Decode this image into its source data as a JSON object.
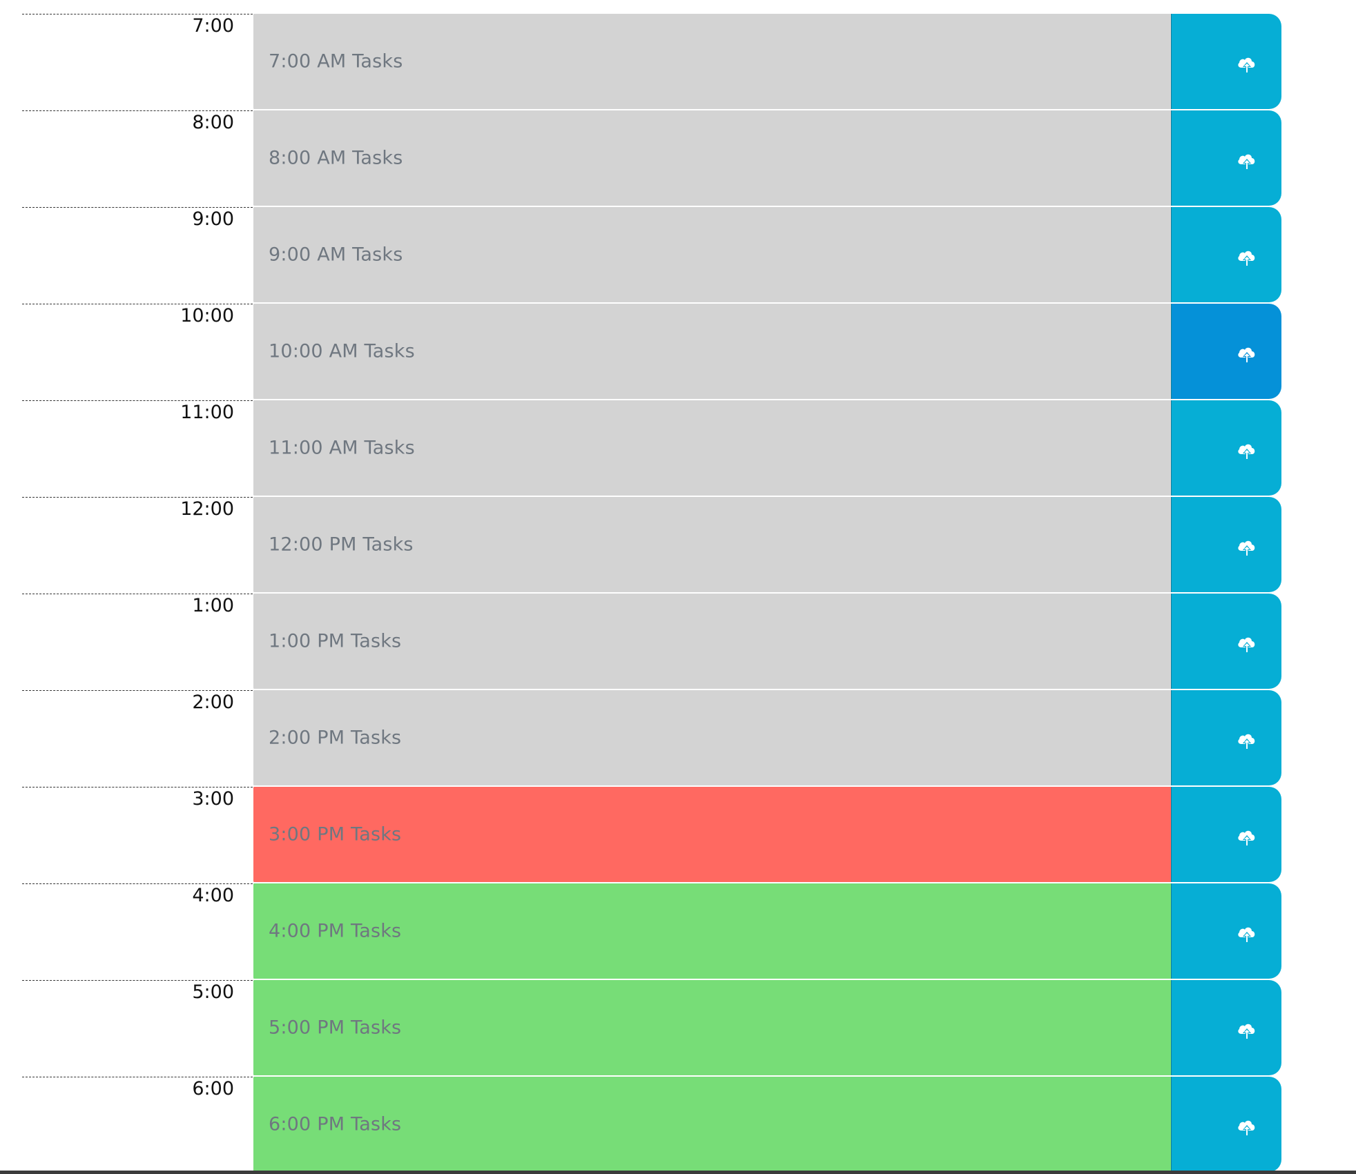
{
  "colors": {
    "past": "#d3d3d3",
    "present": "#ff6961",
    "future": "#77dd77",
    "save_button": "#06aed5",
    "save_button_active": "#0591d8",
    "task_text": "#6f7780"
  },
  "rows": [
    {
      "hour": "7:00",
      "task": "7:00 AM Tasks",
      "state": "past",
      "icon": "cloud-upload-icon"
    },
    {
      "hour": "8:00",
      "task": "8:00 AM Tasks",
      "state": "past",
      "icon": "cloud-upload-icon"
    },
    {
      "hour": "9:00",
      "task": "9:00 AM Tasks",
      "state": "past",
      "icon": "cloud-upload-icon"
    },
    {
      "hour": "10:00",
      "task": "10:00 AM Tasks",
      "state": "past",
      "icon": "cloud-upload-icon",
      "button_active": true
    },
    {
      "hour": "11:00",
      "task": "11:00 AM Tasks",
      "state": "past",
      "icon": "cloud-upload-icon"
    },
    {
      "hour": "12:00",
      "task": "12:00 PM Tasks",
      "state": "past",
      "icon": "cloud-upload-icon"
    },
    {
      "hour": "1:00",
      "task": "1:00 PM Tasks",
      "state": "past",
      "icon": "cloud-upload-icon"
    },
    {
      "hour": "2:00",
      "task": "2:00 PM Tasks",
      "state": "past",
      "icon": "cloud-upload-icon"
    },
    {
      "hour": "3:00",
      "task": "3:00 PM Tasks",
      "state": "present",
      "icon": "cloud-upload-icon"
    },
    {
      "hour": "4:00",
      "task": "4:00 PM Tasks",
      "state": "future",
      "icon": "cloud-upload-icon"
    },
    {
      "hour": "5:00",
      "task": "5:00 PM Tasks",
      "state": "future",
      "icon": "cloud-upload-icon"
    },
    {
      "hour": "6:00",
      "task": "6:00 PM Tasks",
      "state": "future",
      "icon": "cloud-upload-icon"
    }
  ]
}
